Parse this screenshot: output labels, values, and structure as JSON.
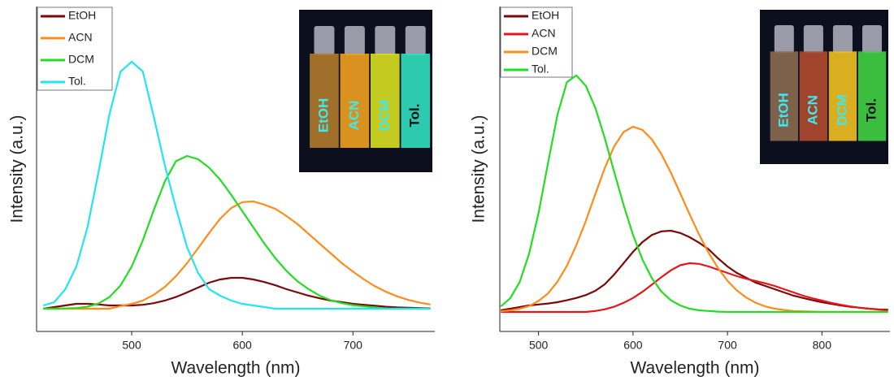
{
  "chart_data": [
    {
      "type": "line",
      "xlabel": "Wavelength (nm)",
      "ylabel": "Intensity (a.u.)",
      "xlim": [
        414,
        774
      ],
      "ylim": [
        0,
        100
      ],
      "xticks": [
        500,
        600,
        700
      ],
      "legend": "upper left",
      "x": [
        420,
        430,
        440,
        450,
        460,
        470,
        480,
        490,
        500,
        510,
        520,
        530,
        540,
        550,
        560,
        570,
        580,
        590,
        600,
        610,
        620,
        630,
        640,
        650,
        660,
        670,
        680,
        690,
        700,
        710,
        720,
        730,
        740,
        750,
        760,
        770
      ],
      "series": [
        {
          "name": "EtOH",
          "color": "#7a0a0a",
          "values": [
            7,
            7.5,
            8,
            8.5,
            8.5,
            8.3,
            8,
            8,
            8,
            8.2,
            8.7,
            9.5,
            10.6,
            12,
            13.5,
            15,
            16,
            16.5,
            16.5,
            16,
            15.2,
            14.2,
            13,
            12,
            11,
            10.2,
            9.5,
            9,
            8.5,
            8.2,
            7.9,
            7.6,
            7.4,
            7.3,
            7.2,
            7.1
          ]
        },
        {
          "name": "ACN",
          "color": "#ff8c1a",
          "values": [
            7,
            7,
            7,
            7,
            7,
            7,
            7,
            7.8,
            8.5,
            9.5,
            11.3,
            13.7,
            17,
            21,
            25.6,
            30.3,
            34.7,
            38,
            39.8,
            40,
            39,
            37.7,
            35.5,
            33,
            30,
            27,
            24,
            21,
            18.4,
            16,
            13.9,
            12.2,
            10.8,
            9.7,
            8.9,
            8.3
          ]
        },
        {
          "name": "DCM",
          "color": "#22dd22",
          "values": [
            7,
            7,
            7.1,
            7.2,
            7.6,
            8.6,
            10.6,
            14.2,
            20,
            28,
            37.4,
            46.2,
            52.4,
            54,
            53,
            50.4,
            46.7,
            42,
            37,
            32,
            27,
            22.5,
            18.6,
            15.4,
            13,
            11,
            9.6,
            8.7,
            8.1,
            7.7,
            7.4,
            7,
            7,
            7,
            7,
            7
          ]
        },
        {
          "name": "Tol.",
          "color": "#22e5f0",
          "values": [
            8,
            9,
            13,
            20,
            32,
            49,
            67,
            80,
            83,
            80,
            66,
            51,
            38,
            26,
            18,
            13,
            11,
            9.5,
            8.5,
            8,
            7.5,
            7,
            7,
            7,
            7,
            7,
            7,
            7,
            7,
            7,
            7,
            7,
            7,
            7,
            7,
            7
          ]
        }
      ],
      "inset": {
        "labels": [
          "EtOH",
          "ACN",
          "DCM",
          "Tol."
        ],
        "colors": [
          "#b07a2a",
          "#f0a020",
          "#d8e020",
          "#30e0c0"
        ],
        "label_colors": [
          "#40e8f0",
          "#40e8f0",
          "#40e8f0",
          "#111111"
        ]
      }
    },
    {
      "type": "line",
      "xlabel": "Wavelength (nm)",
      "ylabel": "Intensity (a.u.)",
      "xlim": [
        459,
        872
      ],
      "ylim": [
        0,
        100
      ],
      "xticks": [
        500,
        600,
        700,
        800
      ],
      "legend": "upper left",
      "x": [
        460,
        470,
        480,
        490,
        500,
        510,
        520,
        530,
        540,
        550,
        560,
        570,
        580,
        590,
        600,
        610,
        620,
        630,
        640,
        650,
        660,
        670,
        680,
        690,
        700,
        710,
        720,
        730,
        740,
        750,
        760,
        770,
        780,
        790,
        800,
        810,
        820,
        830,
        840,
        850,
        860,
        870
      ],
      "series": [
        {
          "name": "EtOH",
          "color": "#7a0a0a",
          "values": [
            6.5,
            7,
            7.5,
            8,
            8.3,
            8.6,
            9,
            9.6,
            10.3,
            11.2,
            12.5,
            14.5,
            17.5,
            21,
            24.5,
            27.5,
            29.7,
            30.8,
            31,
            30.3,
            29,
            27.3,
            25.3,
            22.5,
            20,
            18,
            16.5,
            15,
            14,
            13,
            12,
            11,
            10.3,
            9.6,
            9,
            8.5,
            8,
            7.6,
            7.3,
            7,
            6.8,
            6.7
          ]
        },
        {
          "name": "ACN",
          "color": "#e8141a",
          "values": [
            6,
            6,
            6,
            6,
            6,
            6,
            6,
            6,
            6,
            6,
            6.3,
            6.8,
            7.6,
            8.8,
            10.3,
            12.2,
            14.4,
            16.7,
            18.8,
            20.4,
            21,
            20.8,
            20,
            19,
            18,
            17,
            16.2,
            15.5,
            14.8,
            14,
            13,
            12,
            11,
            10.2,
            9.5,
            8.8,
            8.2,
            7.7,
            7.3,
            7,
            6.7,
            6.5
          ]
        },
        {
          "name": "DCM",
          "color": "#ff8c1a",
          "values": [
            6.2,
            6.5,
            7,
            7.8,
            9.4,
            11.7,
            15.3,
            20.2,
            26.5,
            34,
            42.2,
            50.2,
            56.9,
            61.4,
            63,
            62,
            59.1,
            54.6,
            48.9,
            42.5,
            36,
            29.8,
            24.2,
            19.5,
            15.6,
            12.6,
            10.4,
            8.8,
            7.7,
            7,
            6.6,
            6.3,
            6.2,
            6.1,
            6,
            6,
            6,
            6,
            6,
            6,
            6,
            6
          ]
        },
        {
          "name": "Tol.",
          "color": "#22dd22",
          "values": [
            7.7,
            10.2,
            15.2,
            23.9,
            36.5,
            51.8,
            66.7,
            76.7,
            78.8,
            75.6,
            68.9,
            59.6,
            49.2,
            38.9,
            29.7,
            22.1,
            16.4,
            12.3,
            9.6,
            8,
            7,
            6.5,
            6.3,
            6.1,
            6,
            6,
            6,
            6,
            6,
            6,
            6,
            6,
            6,
            6,
            6,
            6,
            6,
            6,
            6,
            6,
            6,
            6
          ]
        }
      ],
      "inset": {
        "labels": [
          "EtOH",
          "ACN",
          "DCM",
          "Tol."
        ],
        "colors": [
          "#8a6a50",
          "#b04a30",
          "#f0c020",
          "#40d040"
        ],
        "label_colors": [
          "#40e8f0",
          "#40e8f0",
          "#40e8f0",
          "#111111"
        ]
      }
    }
  ]
}
